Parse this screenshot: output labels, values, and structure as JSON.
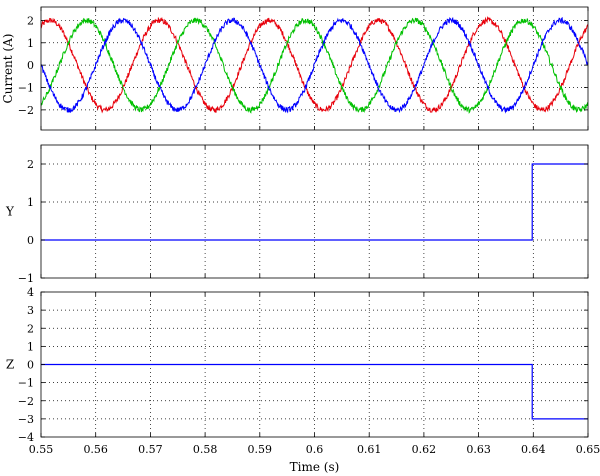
{
  "chart_data": [
    {
      "type": "line",
      "ylabel": "Current (A)",
      "xlim": [
        0.55,
        0.65
      ],
      "ylim": [
        -2.9,
        2.6
      ],
      "yticks": [
        -2,
        -1,
        0,
        1,
        2
      ],
      "xticks": [
        0.55,
        0.56,
        0.57,
        0.58,
        0.59,
        0.6,
        0.61,
        0.62,
        0.63,
        0.64,
        0.65
      ],
      "grid": true,
      "series": [
        {
          "color": "#e8000b",
          "amplitude": 2.0,
          "frequency_hz": 50,
          "phase_deg": -120,
          "noise": 0.12
        },
        {
          "color": "#00c000",
          "amplitude": 2.0,
          "frequency_hz": 50,
          "phase_deg": 120,
          "noise": 0.12
        },
        {
          "color": "#0000ff",
          "amplitude": 2.0,
          "frequency_hz": 50,
          "phase_deg": 0,
          "noise": 0.12
        }
      ]
    },
    {
      "type": "line",
      "ylabel": "Y",
      "xlim": [
        0.55,
        0.65
      ],
      "ylim": [
        -1,
        2.5
      ],
      "yticks": [
        -1,
        0,
        1,
        2
      ],
      "xticks": [
        0.55,
        0.56,
        0.57,
        0.58,
        0.59,
        0.6,
        0.61,
        0.62,
        0.63,
        0.64,
        0.65
      ],
      "grid": true,
      "series": [
        {
          "color": "#0000ff",
          "x": [
            0.55,
            0.6398,
            0.6398,
            0.65
          ],
          "y": [
            0,
            0,
            2,
            2
          ]
        }
      ]
    },
    {
      "type": "line",
      "ylabel": "Z",
      "xlabel": "Time (s)",
      "xlim": [
        0.55,
        0.65
      ],
      "ylim": [
        -4,
        4
      ],
      "yticks": [
        -4,
        -3,
        -2,
        -1,
        0,
        1,
        2,
        3,
        4
      ],
      "xticks": [
        0.55,
        0.56,
        0.57,
        0.58,
        0.59,
        0.6,
        0.61,
        0.62,
        0.63,
        0.64,
        0.65
      ],
      "xticklabels": [
        "0.55",
        "0.56",
        "0.57",
        "0.58",
        "0.59",
        "0.6",
        "0.61",
        "0.62",
        "0.63",
        "0.64",
        "0.65"
      ],
      "grid": true,
      "series": [
        {
          "color": "#0000ff",
          "x": [
            0.55,
            0.6398,
            0.6398,
            0.65
          ],
          "y": [
            0,
            0,
            -3,
            -3
          ]
        }
      ]
    }
  ]
}
